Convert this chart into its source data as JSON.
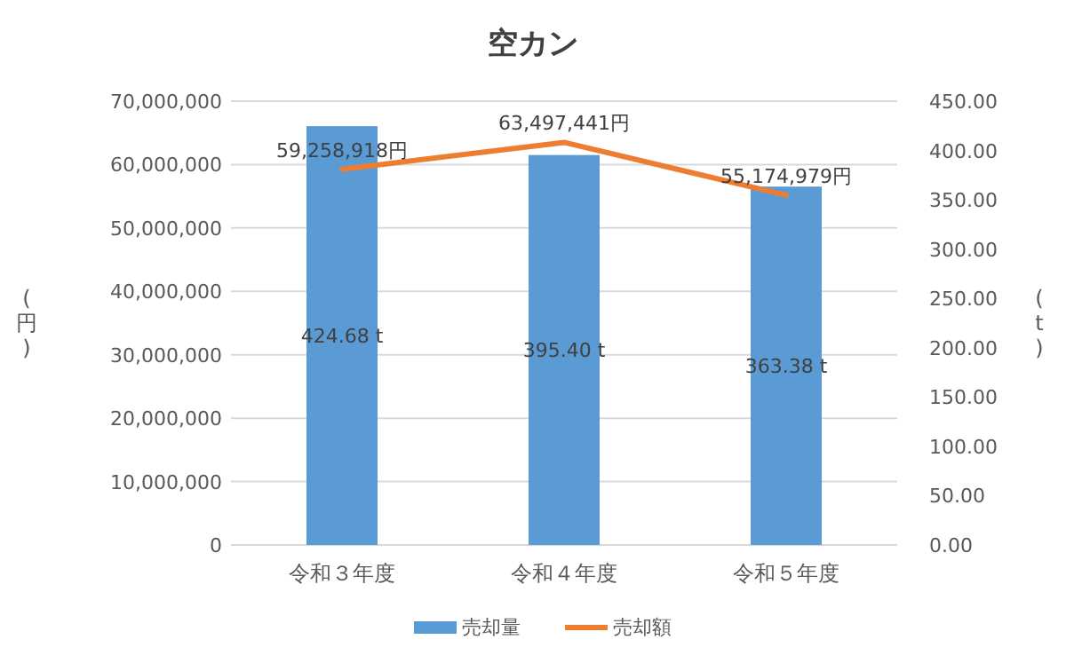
{
  "chart_data": {
    "type": "bar",
    "title": "空カン",
    "ylabel": "(円)",
    "y2label": "(t)",
    "categories": [
      "令和３年度",
      "令和４年度",
      "令和５年度"
    ],
    "series": [
      {
        "name": "売却量",
        "axis": "y2",
        "color": "#5b9bd5",
        "values": [
          424.68,
          395.4,
          363.38
        ],
        "value_labels": [
          "424.68 t",
          "395.40 t",
          "363.38 t"
        ]
      },
      {
        "name": "売却額",
        "type": "line",
        "axis": "y",
        "color": "#ed7d31",
        "values": [
          59258918,
          63497441,
          55174979
        ],
        "value_labels": [
          "59,258,918円",
          "63,497,441円",
          "55,174,979円"
        ]
      }
    ],
    "ylim": [
      0,
      70000000
    ],
    "yticks": [
      {
        "value": 0,
        "label": "0"
      },
      {
        "value": 10000000,
        "label": "10,000,000"
      },
      {
        "value": 20000000,
        "label": "20,000,000"
      },
      {
        "value": 30000000,
        "label": "30,000,000"
      },
      {
        "value": 40000000,
        "label": "40,000,000"
      },
      {
        "value": 50000000,
        "label": "50,000,000"
      },
      {
        "value": 60000000,
        "label": "60,000,000"
      },
      {
        "value": 70000000,
        "label": "70,000,000"
      }
    ],
    "y2lim": [
      0,
      450
    ],
    "y2ticks": [
      {
        "value": 0,
        "label": "0.00"
      },
      {
        "value": 50,
        "label": "50.00"
      },
      {
        "value": 100,
        "label": "100.00"
      },
      {
        "value": 150,
        "label": "150.00"
      },
      {
        "value": 200,
        "label": "200.00"
      },
      {
        "value": 250,
        "label": "250.00"
      },
      {
        "value": 300,
        "label": "300.00"
      },
      {
        "value": 350,
        "label": "350.00"
      },
      {
        "value": 400,
        "label": "400.00"
      },
      {
        "value": 450,
        "label": "450.00"
      }
    ],
    "grid": "y",
    "legend": "bottom"
  }
}
